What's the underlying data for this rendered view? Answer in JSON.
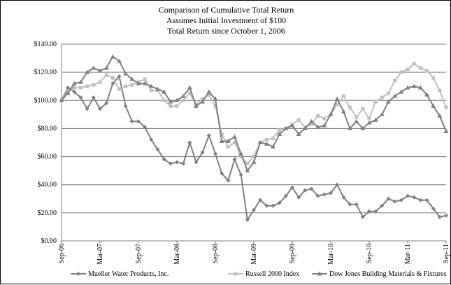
{
  "chart_data": {
    "type": "line",
    "title": [
      "Comparison of Cumulative Total Return",
      "Assumes Initial Investment of $100",
      "Total Return since October 1, 2006"
    ],
    "xlabel": "",
    "ylabel": "",
    "ylim": [
      0,
      140
    ],
    "yticks": [
      "$0.00",
      "$20.00",
      "$40.00",
      "$60.00",
      "$80.00",
      "$100.00",
      "$120.00",
      "$140.00"
    ],
    "xtick_labels": [
      "Sep-06",
      "Mar-07",
      "Sep-07",
      "Mar-08",
      "Sep-08",
      "Mar-09",
      "Sep-09",
      "Mar-10",
      "Sep-10",
      "Mar-11",
      "Sep-11"
    ],
    "x_months": 61,
    "grid": true,
    "legend_position": "bottom",
    "series": [
      {
        "name": "Mueller Water Products, Inc.",
        "color": "#808080",
        "marker": "diamond",
        "values": [
          100,
          109,
          106,
          102,
          94,
          102,
          94,
          98,
          112,
          117,
          96,
          85,
          85,
          81,
          72,
          65,
          58,
          55,
          56,
          55,
          70,
          56,
          63,
          75,
          62,
          48,
          43,
          58,
          47,
          15,
          22,
          29,
          25,
          25,
          27,
          32,
          38,
          31,
          36,
          37,
          32,
          33,
          34,
          40,
          31,
          26,
          26,
          17,
          21,
          21,
          25,
          30,
          28,
          29,
          32,
          31,
          29,
          29,
          23,
          17,
          18
        ]
      },
      {
        "name": "Russell 2000 Index",
        "color": "#c0c0c0",
        "marker": "square",
        "values": [
          100,
          106,
          109,
          109,
          110,
          111,
          113,
          118,
          116,
          108,
          110,
          111,
          113,
          115,
          107,
          107,
          100,
          96,
          96,
          100,
          105,
          97,
          101,
          104,
          96,
          76,
          67,
          70,
          60,
          55,
          60,
          70,
          72,
          73,
          79,
          80,
          83,
          86,
          81,
          83,
          89,
          87,
          90,
          97,
          103,
          95,
          88,
          94,
          87,
          99,
          102,
          105,
          114,
          120,
          122,
          126,
          123,
          121,
          116,
          107,
          95
        ]
      },
      {
        "name": "Dow Jones Building Materials & Fixtures",
        "color": "#808080",
        "marker": "triangle",
        "values": [
          100,
          105,
          112,
          113,
          120,
          123,
          121,
          123,
          131,
          128,
          119,
          115,
          112,
          112,
          110,
          108,
          106,
          99,
          100,
          103,
          109,
          96,
          99,
          106,
          101,
          71,
          71,
          74,
          62,
          50,
          56,
          70,
          69,
          67,
          76,
          80,
          82,
          76,
          80,
          85,
          81,
          82,
          90,
          101,
          92,
          80,
          85,
          80,
          84,
          86,
          90,
          99,
          103,
          106,
          109,
          110,
          109,
          104,
          96,
          89,
          78
        ]
      }
    ]
  }
}
